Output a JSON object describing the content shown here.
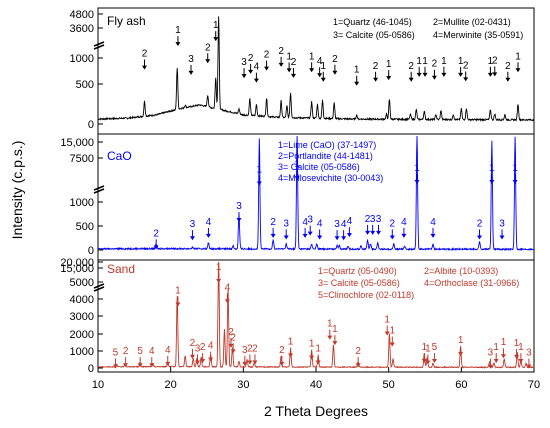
{
  "chart_data": {
    "type": "line",
    "xlabel": "2 Theta Degrees",
    "ylabel": "Intensity (c.p.s.)",
    "xlim": [
      10,
      70
    ],
    "xticks": [
      10,
      20,
      30,
      40,
      50,
      60,
      70
    ],
    "panels": [
      {
        "name": "Fly ash",
        "color": "#000000",
        "yticks": [
          "0",
          "500",
          "1000",
          "3600",
          "4800"
        ],
        "legend": [
          "1=Quartz (46-1045)",
          "2=Mullite (02-0431)",
          "3= Calcite (05-0586)",
          "4=Merwinite (35-0591)"
        ],
        "background": [
          [
            10,
            60
          ],
          [
            14,
            70
          ],
          [
            18,
            110
          ],
          [
            21,
            180
          ],
          [
            24,
            230
          ],
          [
            27,
            170
          ],
          [
            30,
            110
          ],
          [
            35,
            80
          ],
          [
            45,
            60
          ],
          [
            55,
            55
          ],
          [
            70,
            50
          ]
        ],
        "peaks": [
          [
            16.4,
            180
          ],
          [
            20.9,
            500
          ],
          [
            22.0,
            30
          ],
          [
            25.1,
            140
          ],
          [
            26.6,
            1120
          ],
          [
            26.2,
            380
          ],
          [
            29.4,
            60
          ],
          [
            30.9,
            200
          ],
          [
            31.8,
            140
          ],
          [
            33.2,
            220
          ],
          [
            35.2,
            200
          ],
          [
            36.0,
            140
          ],
          [
            36.5,
            300
          ],
          [
            39.4,
            200
          ],
          [
            40.2,
            170
          ],
          [
            40.9,
            220
          ],
          [
            42.5,
            190
          ],
          [
            45.6,
            50
          ],
          [
            49.7,
            60
          ],
          [
            50.1,
            240
          ],
          [
            53.0,
            60
          ],
          [
            53.8,
            120
          ],
          [
            54.9,
            100
          ],
          [
            56.5,
            60
          ],
          [
            57.2,
            110
          ],
          [
            58.9,
            60
          ],
          [
            60.0,
            130
          ],
          [
            60.7,
            140
          ],
          [
            64.0,
            120
          ],
          [
            64.6,
            70
          ],
          [
            66.0,
            60
          ],
          [
            67.8,
            190
          ]
        ],
        "labels": [
          [
            "1",
            21.0,
            1095
          ],
          [
            "1",
            26.2,
            1155
          ],
          [
            "2",
            16.4,
            812
          ],
          [
            "3",
            22.8,
            748
          ],
          [
            "2",
            25.1,
            888
          ],
          [
            "3",
            30.1,
            710
          ],
          [
            "2",
            31.0,
            760
          ],
          [
            "4",
            31.8,
            655
          ],
          [
            "2",
            33.2,
            800
          ],
          [
            "2",
            35.2,
            845
          ],
          [
            "1",
            36.3,
            778
          ],
          [
            "2",
            36.9,
            712
          ],
          [
            "1",
            39.4,
            780
          ],
          [
            "4",
            40.5,
            720
          ],
          [
            "1",
            41.0,
            665
          ],
          [
            "2",
            42.6,
            750
          ],
          [
            "1",
            45.6,
            618
          ],
          [
            "2",
            48.2,
            665
          ],
          [
            "1",
            50.0,
            685
          ],
          [
            "2",
            53.1,
            665
          ],
          [
            "1",
            54.2,
            725
          ],
          [
            "1",
            55.0,
            725
          ],
          [
            "2",
            56.3,
            690
          ],
          [
            "1",
            57.6,
            725
          ],
          [
            "1",
            59.9,
            725
          ],
          [
            "2",
            60.6,
            670
          ],
          [
            "1",
            64.0,
            725
          ],
          [
            "2",
            64.6,
            730
          ],
          [
            "2",
            66.4,
            665
          ],
          [
            "1",
            67.8,
            780
          ]
        ]
      },
      {
        "name": "CaO",
        "color": "#0000ff",
        "yticks": [
          "0",
          "500",
          "1000",
          "7500",
          "15,000"
        ],
        "legend": [
          "1=Lime (CaO) (37-1497)",
          "2=Portlandite (44-1481)",
          "3= Calcite (05-0586)",
          "4=Millosevichite (30-0043)"
        ],
        "background": [
          [
            10,
            15
          ],
          [
            20,
            18
          ],
          [
            30,
            15
          ],
          [
            50,
            12
          ],
          [
            70,
            10
          ]
        ],
        "peaks": [
          [
            18.0,
            60
          ],
          [
            23.0,
            20
          ],
          [
            25.2,
            80
          ],
          [
            28.6,
            40
          ],
          [
            29.4,
            450
          ],
          [
            32.2,
            1450
          ],
          [
            34.1,
            120
          ],
          [
            35.9,
            70
          ],
          [
            37.4,
            1520
          ],
          [
            39.4,
            60
          ],
          [
            40.1,
            70
          ],
          [
            42.9,
            50
          ],
          [
            43.2,
            50
          ],
          [
            44.4,
            30
          ],
          [
            46.2,
            40
          ],
          [
            47.1,
            120
          ],
          [
            47.5,
            70
          ],
          [
            48.5,
            80
          ],
          [
            50.7,
            70
          ],
          [
            52.2,
            40
          ],
          [
            53.9,
            1500
          ],
          [
            56.1,
            60
          ],
          [
            62.5,
            100
          ],
          [
            64.2,
            1430
          ],
          [
            67.4,
            1470
          ]
        ],
        "labels": [
          [
            "2",
            18.0,
            180
          ],
          [
            "3",
            23.0,
            300
          ],
          [
            "4",
            25.2,
            330
          ],
          [
            "3",
            29.4,
            540
          ],
          [
            "1",
            32.2,
            1020
          ],
          [
            "2",
            34.1,
            330
          ],
          [
            "3",
            35.9,
            310
          ],
          [
            "1",
            37.4,
            1090
          ],
          [
            "4",
            38.5,
            330
          ],
          [
            "3",
            39.2,
            360
          ],
          [
            "4",
            40.5,
            310
          ],
          [
            "3",
            42.9,
            300
          ],
          [
            "4",
            43.8,
            300
          ],
          [
            "4",
            44.6,
            340
          ],
          [
            "2",
            47.1,
            370
          ],
          [
            "3",
            47.8,
            370
          ],
          [
            "3",
            48.6,
            370
          ],
          [
            "2",
            50.5,
            310
          ],
          [
            "4",
            52.1,
            330
          ],
          [
            "1",
            53.9,
            1040
          ],
          [
            "4",
            56.1,
            330
          ],
          [
            "2",
            62.5,
            310
          ],
          [
            "1",
            64.2,
            1040
          ],
          [
            "3",
            65.6,
            310
          ],
          [
            "1",
            67.4,
            1040
          ]
        ]
      },
      {
        "name": "Sand",
        "color": "#c0392b",
        "yticks": [
          "0",
          "1000",
          "2000",
          "3000",
          "4000",
          "5000",
          "15,000",
          "20,000"
        ],
        "legend": [
          "1=Quartz (05-0490)",
          "2=Albite (10-0393)",
          "3= Calcite (05-0586)",
          "4=Orthoclase (31-0966)",
          "5=Clinochlore (02-0118)"
        ],
        "background": [
          [
            10,
            80
          ],
          [
            20,
            100
          ],
          [
            30,
            80
          ],
          [
            50,
            60
          ],
          [
            70,
            50
          ]
        ],
        "peaks": [
          [
            12.5,
            200
          ],
          [
            13.7,
            250
          ],
          [
            15.8,
            300
          ],
          [
            17.5,
            250
          ],
          [
            19.6,
            300
          ],
          [
            20.9,
            5100
          ],
          [
            22.0,
            800
          ],
          [
            23.1,
            600
          ],
          [
            23.6,
            600
          ],
          [
            24.2,
            700
          ],
          [
            25.5,
            900
          ],
          [
            26.6,
            7800
          ],
          [
            27.4,
            2700
          ],
          [
            27.9,
            5600
          ],
          [
            28.5,
            1400
          ],
          [
            29.4,
            400
          ],
          [
            30.5,
            500
          ],
          [
            31.5,
            300
          ],
          [
            35.2,
            800
          ],
          [
            36.5,
            1300
          ],
          [
            39.4,
            1200
          ],
          [
            40.3,
            800
          ],
          [
            42.4,
            1600
          ],
          [
            45.8,
            400
          ],
          [
            50.1,
            2400
          ],
          [
            50.6,
            600
          ],
          [
            54.9,
            1000
          ],
          [
            55.3,
            700
          ],
          [
            56.1,
            300
          ],
          [
            59.9,
            1500
          ],
          [
            63.9,
            400
          ],
          [
            64.5,
            300
          ],
          [
            65.9,
            600
          ],
          [
            67.7,
            1100
          ],
          [
            68.2,
            500
          ],
          [
            68.9,
            300
          ]
        ],
        "labels": [
          [
            "1",
            21.0,
            5400
          ],
          [
            "1",
            26.6,
            7950
          ],
          [
            "4",
            27.8,
            5630
          ],
          [
            "2",
            28.3,
            2400
          ],
          [
            "5",
            12.4,
            900
          ],
          [
            "2",
            13.8,
            1000
          ],
          [
            "5",
            15.8,
            1000
          ],
          [
            "4",
            17.4,
            1000
          ],
          [
            "4",
            19.6,
            1100
          ],
          [
            "2",
            23.0,
            1600
          ],
          [
            "3",
            23.7,
            1200
          ],
          [
            "2",
            24.4,
            1300
          ],
          [
            "4",
            25.5,
            1400
          ],
          [
            "2",
            28.6,
            2000
          ],
          [
            "3",
            30.2,
            1100
          ],
          [
            "2",
            30.9,
            1200
          ],
          [
            "2",
            31.6,
            1200
          ],
          [
            "2",
            35.3,
            1100
          ],
          [
            "1",
            36.5,
            1700
          ],
          [
            "1",
            39.4,
            1550
          ],
          [
            "1",
            40.3,
            1200
          ],
          [
            "1",
            41.9,
            3000
          ],
          [
            "1",
            42.6,
            2600
          ],
          [
            "2",
            45.8,
            1000
          ],
          [
            "1",
            49.8,
            3300
          ],
          [
            "1",
            50.5,
            2500
          ],
          [
            "1",
            54.9,
            1300
          ],
          [
            "1",
            55.4,
            1200
          ],
          [
            "5",
            56.3,
            1300
          ],
          [
            "1",
            59.9,
            1800
          ],
          [
            "3",
            64.0,
            900
          ],
          [
            "1",
            64.8,
            1300
          ],
          [
            "1",
            65.8,
            1650
          ],
          [
            "1",
            67.6,
            1600
          ],
          [
            "1",
            68.2,
            1300
          ],
          [
            "3",
            69.3,
            900
          ]
        ]
      }
    ]
  }
}
